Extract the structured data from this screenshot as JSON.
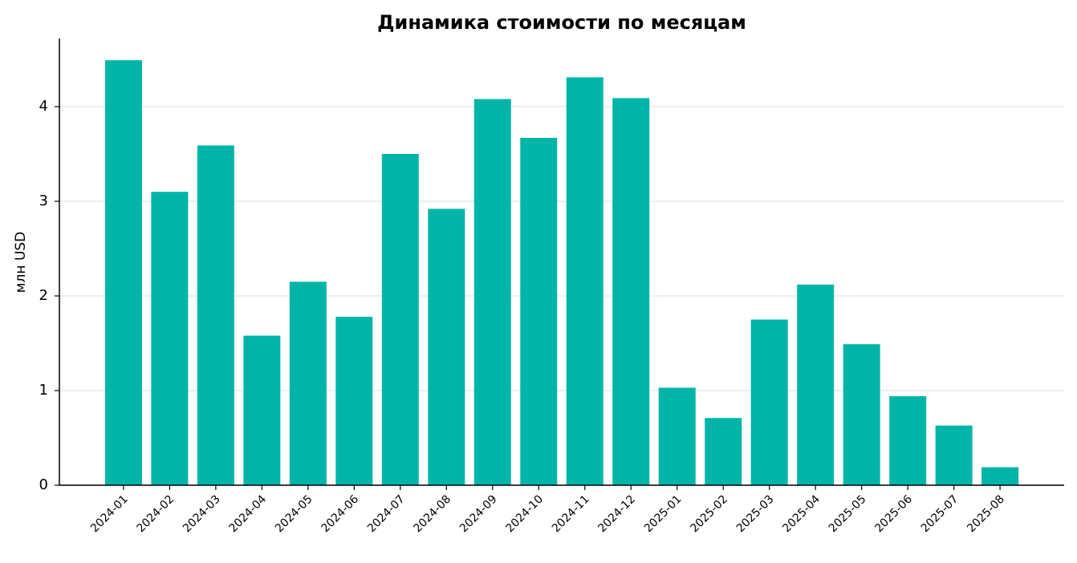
{
  "chart_data": {
    "type": "bar",
    "title": "Динамика стоимости по месяцам",
    "y_label": "млн USD",
    "categories": [
      "2024-01",
      "2024-02",
      "2024-03",
      "2024-04",
      "2024-05",
      "2024-06",
      "2024-07",
      "2024-08",
      "2024-09",
      "2024-10",
      "2024-11",
      "2024-12",
      "2025-01",
      "2025-02",
      "2025-03",
      "2025-04",
      "2025-05",
      "2025-06",
      "2025-07",
      "2025-08"
    ],
    "values": [
      4.49,
      3.1,
      3.59,
      1.58,
      2.15,
      1.78,
      3.5,
      2.92,
      4.08,
      3.67,
      4.31,
      4.09,
      1.03,
      0.71,
      1.75,
      2.12,
      1.49,
      0.94,
      0.63,
      0.19
    ],
    "color": "#00b5a8",
    "ylim": [
      0,
      4.72
    ],
    "yticks": [
      0,
      1,
      2,
      3,
      4
    ],
    "grid": true
  }
}
